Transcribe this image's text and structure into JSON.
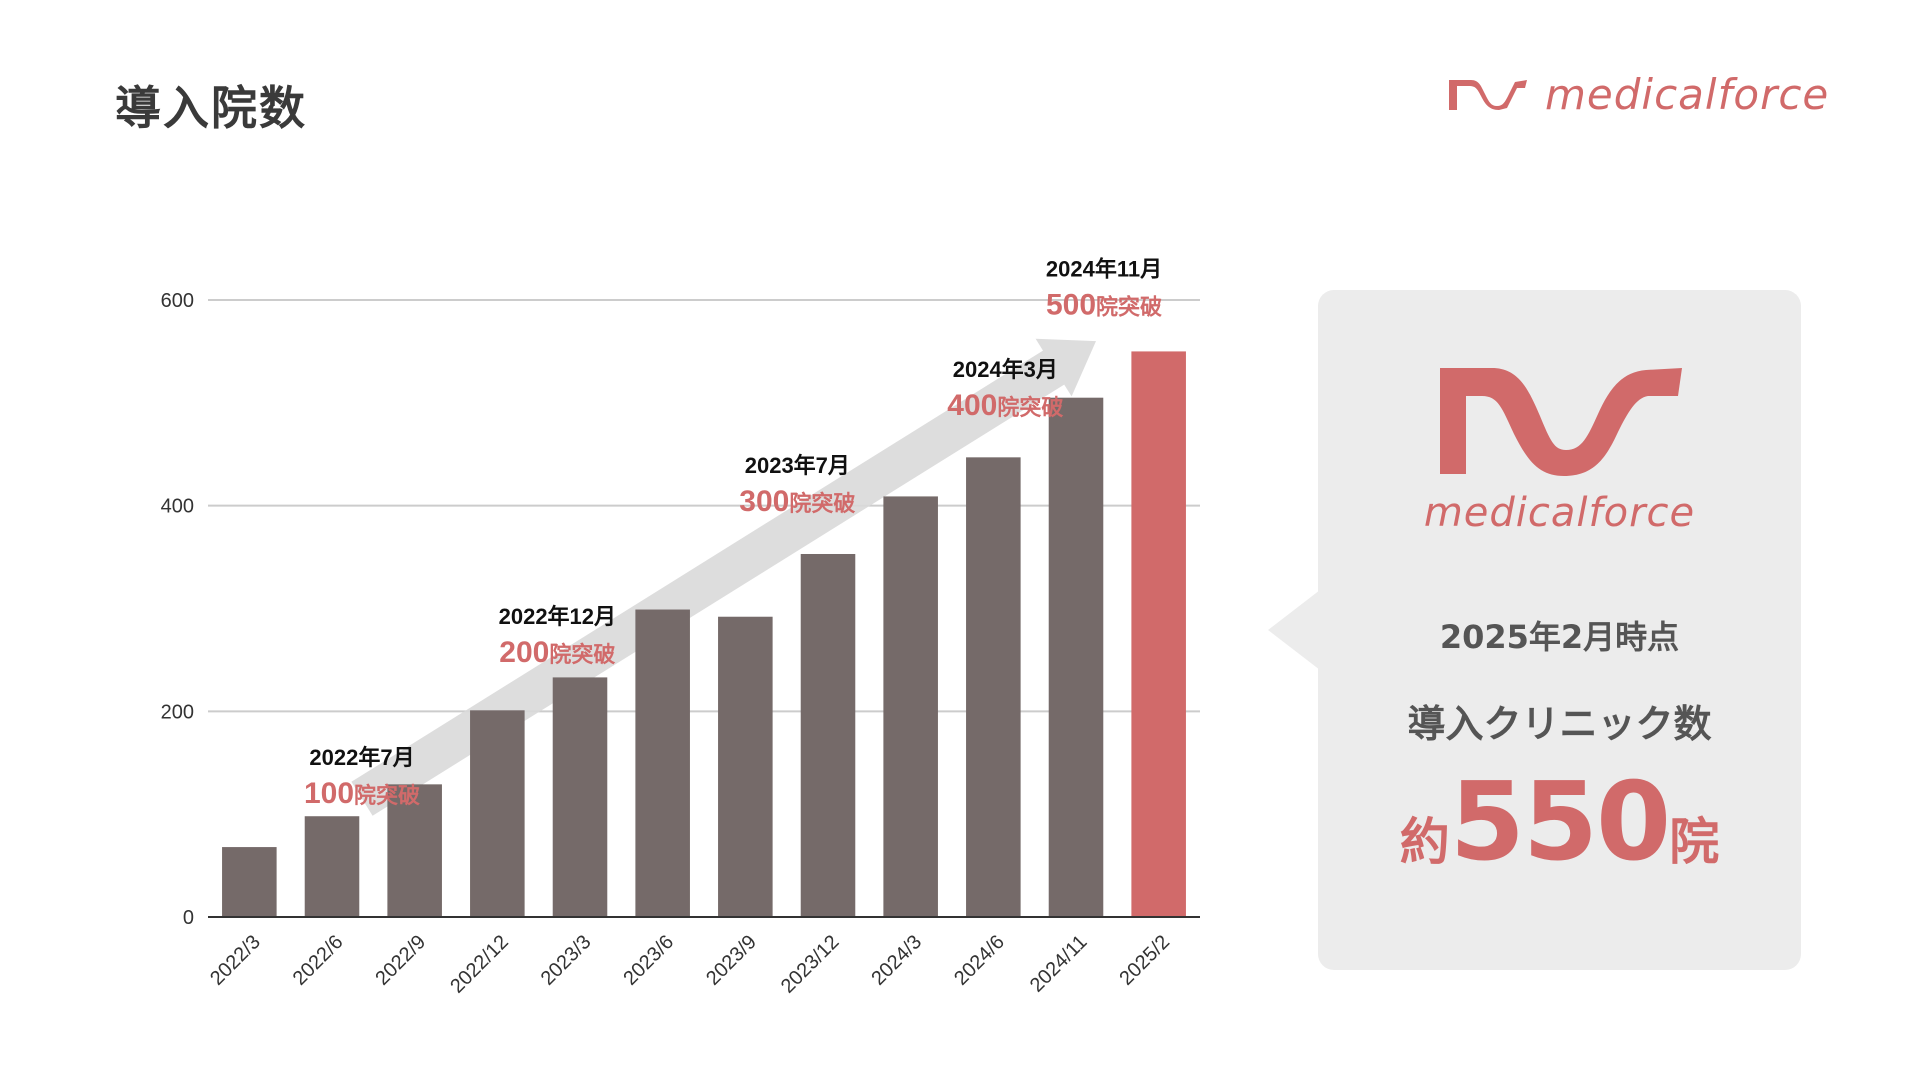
{
  "page": {
    "title": "導入院数"
  },
  "brand": {
    "name": "medicalforce",
    "color": "#d16a6a"
  },
  "chart_data": {
    "type": "bar",
    "categories": [
      "2022/3",
      "2022/6",
      "2022/9",
      "2022/12",
      "2023/3",
      "2023/6",
      "2023/9",
      "2023/12",
      "2024/3",
      "2024/6",
      "2024/11",
      "2025/2"
    ],
    "values": [
      68,
      98,
      129,
      201,
      233,
      299,
      292,
      353,
      409,
      447,
      505,
      550
    ],
    "highlight_index": 11,
    "ylim": [
      0,
      600
    ],
    "yticks": [
      0,
      200,
      400,
      600
    ],
    "ytick_labels": [
      "0",
      "200",
      "400",
      "600"
    ],
    "grid": true,
    "bar_color": "#756a69",
    "highlight_color": "#d16a6a",
    "trend_arrow_color": "#d9d9d9",
    "milestones": [
      {
        "date": "2022年7月",
        "count": "100",
        "suffix": "院突破",
        "near": "2022/6"
      },
      {
        "date": "2022年12月",
        "count": "200",
        "suffix": "院突破",
        "near": "2022/12"
      },
      {
        "date": "2023年7月",
        "count": "300",
        "suffix": "院突破",
        "near": "2023/12"
      },
      {
        "date": "2024年3月",
        "count": "400",
        "suffix": "院突破",
        "near": "2024/6"
      },
      {
        "date": "2024年11月",
        "count": "500",
        "suffix": "院突破",
        "near": "2024/11"
      }
    ]
  },
  "summary": {
    "as_of": "2025年2月時点",
    "label": "導入クリニック数",
    "prefix": "約",
    "value": "550",
    "suffix": "院"
  }
}
